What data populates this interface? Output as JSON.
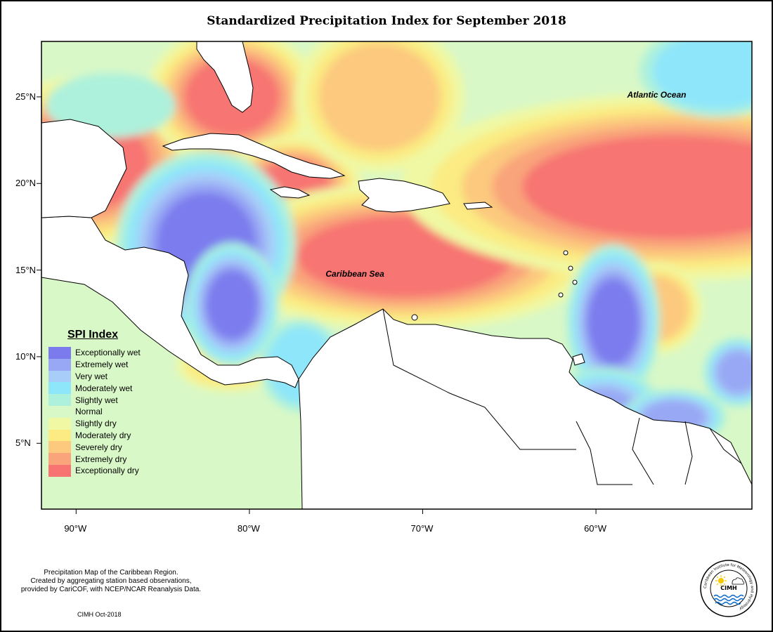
{
  "title": "Standardized Precipitation Index for September 2018",
  "map": {
    "lon_range": [
      -92,
      -51
    ],
    "lat_range": [
      1.2,
      28.2
    ],
    "x_ticks": [
      {
        "lon": -90,
        "label": "90°W"
      },
      {
        "lon": -80,
        "label": "80°W"
      },
      {
        "lon": -70,
        "label": "70°W"
      },
      {
        "lon": -60,
        "label": "60°W"
      }
    ],
    "y_ticks": [
      {
        "lat": 25,
        "label": "25°N"
      },
      {
        "lat": 20,
        "label": "20°N"
      },
      {
        "lat": 15,
        "label": "15°N"
      },
      {
        "lat": 10,
        "label": "10°N"
      },
      {
        "lat": 5,
        "label": "5°N"
      }
    ],
    "labels": [
      {
        "text": "Atlantic Ocean",
        "lon": -58.2,
        "lat": 25.1
      },
      {
        "text": "Caribbean Sea",
        "lon": -75.6,
        "lat": 14.8
      }
    ],
    "background_category": "Normal",
    "anomalies": [
      {
        "category": "Exceptionally dry",
        "lon": -89.5,
        "lat": 21.2,
        "rx_deg": 3.0,
        "ry_deg": 2.2
      },
      {
        "category": "Exceptionally dry",
        "lon": -81.0,
        "lat": 25.0,
        "rx_deg": 2.2,
        "ry_deg": 1.8
      },
      {
        "category": "Exceptionally dry",
        "lon": -77.5,
        "lat": 19.6,
        "rx_deg": 1.8,
        "ry_deg": 1.4
      },
      {
        "category": "Exceptionally dry",
        "lon": -71.0,
        "lat": 15.8,
        "rx_deg": 5.0,
        "ry_deg": 1.9
      },
      {
        "category": "Exceptionally dry",
        "lon": -55.5,
        "lat": 19.8,
        "rx_deg": 7.0,
        "ry_deg": 2.4
      },
      {
        "category": "Severely dry",
        "lon": -72.5,
        "lat": 25.0,
        "rx_deg": 2.8,
        "ry_deg": 2.5
      },
      {
        "category": "Severely dry",
        "lon": -56.5,
        "lat": 12.8,
        "rx_deg": 1.5,
        "ry_deg": 1.5
      },
      {
        "category": "Moderately dry",
        "lon": -81.2,
        "lat": 9.5,
        "rx_deg": 2.0,
        "ry_deg": 1.0
      },
      {
        "category": "Moderately dry",
        "lon": -54.5,
        "lat": 4.8,
        "rx_deg": 1.0,
        "ry_deg": 0.8
      },
      {
        "category": "Exceptionally wet",
        "lon": -82.5,
        "lat": 16.5,
        "rx_deg": 2.3,
        "ry_deg": 2.4
      },
      {
        "category": "Exceptionally wet",
        "lon": -81.0,
        "lat": 13.0,
        "rx_deg": 1.2,
        "ry_deg": 1.6
      },
      {
        "category": "Exceptionally wet",
        "lon": -59.0,
        "lat": 12.0,
        "rx_deg": 1.2,
        "ry_deg": 2.0
      },
      {
        "category": "Extremely wet",
        "lon": -59.5,
        "lat": 6.2,
        "rx_deg": 1.8,
        "ry_deg": 1.6
      },
      {
        "category": "Extremely wet",
        "lon": -51.8,
        "lat": 9.1,
        "rx_deg": 1.0,
        "ry_deg": 1.0
      },
      {
        "category": "Extremely wet",
        "lon": -55.5,
        "lat": 6.5,
        "rx_deg": 1.5,
        "ry_deg": 0.8
      },
      {
        "category": "Moderately wet",
        "lon": -53.0,
        "lat": 26.5,
        "rx_deg": 3.0,
        "ry_deg": 1.8
      },
      {
        "category": "Moderately wet",
        "lon": -77.0,
        "lat": 9.5,
        "rx_deg": 1.6,
        "ry_deg": 1.8
      },
      {
        "category": "Slightly wet",
        "lon": -88.0,
        "lat": 24.5,
        "rx_deg": 3.0,
        "ry_deg": 1.5
      }
    ]
  },
  "legend": {
    "title": "SPI Index",
    "items": [
      {
        "label": "Exceptionally wet",
        "color": "#7b7bee"
      },
      {
        "label": "Extremely wet",
        "color": "#98a8f4"
      },
      {
        "label": "Very wet",
        "color": "#a8cdf8"
      },
      {
        "label": "Moderately wet",
        "color": "#8ee6fa"
      },
      {
        "label": "Slightly wet",
        "color": "#adf1dc"
      },
      {
        "label": "Normal",
        "color": "#d9f8c7"
      },
      {
        "label": "Slightly dry",
        "color": "#f0f8a3"
      },
      {
        "label": "Moderately dry",
        "color": "#fbeb82"
      },
      {
        "label": "Severely dry",
        "color": "#fcc97e"
      },
      {
        "label": "Extremely dry",
        "color": "#f9a47a"
      },
      {
        "label": "Exceptionally dry",
        "color": "#f77472"
      }
    ]
  },
  "credit": {
    "lines": [
      "Precipitation Map of the Caribbean Region.",
      "Created by aggregating station based observations,",
      "provided by CariCOF, with NCEP/NCAR Reanalysis Data."
    ],
    "footer": "CIMH Oct-2018"
  },
  "logo": {
    "text": "CIMH",
    "ring_text": "Caribbean Institute for Meteorology and Hydrology"
  }
}
